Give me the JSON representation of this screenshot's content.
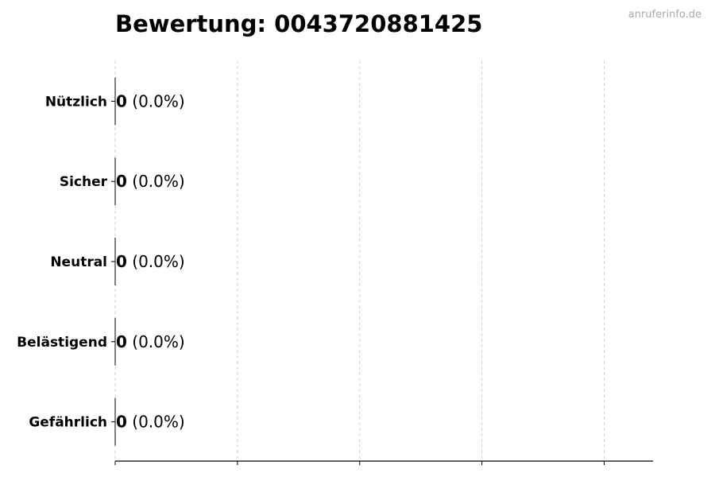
{
  "watermark": "anruferinfo.de",
  "chart_data": {
    "type": "bar",
    "orientation": "horizontal",
    "title": "Bewertung: 0043720881425",
    "categories": [
      "Nützlich",
      "Sicher",
      "Neutral",
      "Belästigend",
      "Gefährlich"
    ],
    "values": [
      0,
      0,
      0,
      0,
      0
    ],
    "data_labels": [
      {
        "count": "0",
        "percent": "(0.0%)"
      },
      {
        "count": "0",
        "percent": "(0.0%)"
      },
      {
        "count": "0",
        "percent": "(0.0%)"
      },
      {
        "count": "0",
        "percent": "(0.0%)"
      },
      {
        "count": "0",
        "percent": "(0.0%)"
      }
    ],
    "xlabel": "",
    "ylabel": "",
    "xlim": [
      0,
      4.4
    ],
    "xticks": [
      0,
      1,
      2,
      3,
      4
    ],
    "xtick_labels_shown": false,
    "grid": "x dashed",
    "bar_edge_color": "#000000",
    "grid_color": "#d3d3d3",
    "watermark_color": "#aaaaaa"
  }
}
